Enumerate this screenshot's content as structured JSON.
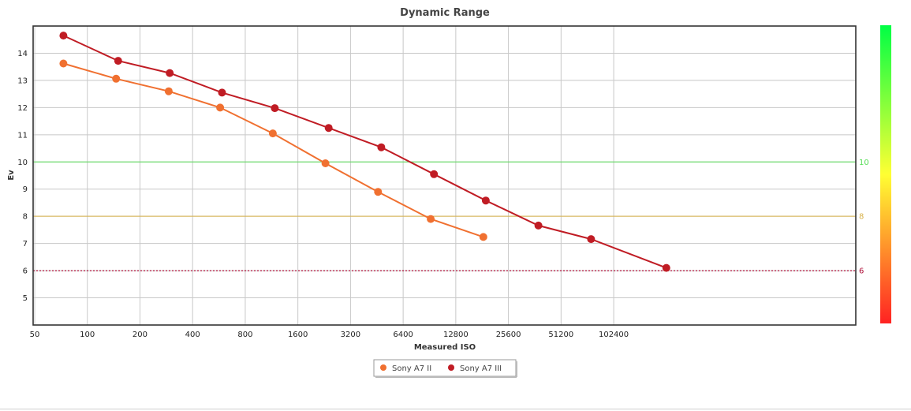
{
  "chart_data": {
    "type": "line",
    "title": "Dynamic Range",
    "xlabel": "Measured ISO",
    "ylabel": "Ev",
    "x_scale": "log2",
    "x_ticks": [
      {
        "value": 50,
        "label": "50"
      },
      {
        "value": 100,
        "label": "100"
      },
      {
        "value": 200,
        "label": "200"
      },
      {
        "value": 400,
        "label": "400"
      },
      {
        "value": 800,
        "label": "800"
      },
      {
        "value": 1600,
        "label": "1600"
      },
      {
        "value": 3200,
        "label": "3200"
      },
      {
        "value": 6400,
        "label": "6400"
      },
      {
        "value": 12800,
        "label": "12800"
      },
      {
        "value": 25600,
        "label": "25600"
      },
      {
        "value": 51200,
        "label": "51200"
      },
      {
        "value": 102400,
        "label": "102400"
      }
    ],
    "xlim": [
      50,
      1638400
    ],
    "y_ticks": [
      5,
      6,
      7,
      8,
      9,
      10,
      11,
      12,
      13,
      14
    ],
    "ylim": [
      4,
      15
    ],
    "grid": true,
    "legend_position": "bottom-center",
    "reference_lines": [
      {
        "value": 10,
        "label": "10",
        "color": "#55dd55",
        "style": "solid"
      },
      {
        "value": 8,
        "label": "8",
        "color": "#d8b24a",
        "style": "solid"
      },
      {
        "value": 6,
        "label": "6",
        "color": "#b0103a",
        "style": "dotted"
      }
    ],
    "colorbar": {
      "position": "right",
      "gradient": [
        "#00ff44",
        "#ffff33",
        "#ff2222"
      ]
    },
    "series": [
      {
        "name": "Sony A7 II",
        "color": "#f07030",
        "points": [
          {
            "x": 73,
            "y": 13.62
          },
          {
            "x": 146,
            "y": 13.06
          },
          {
            "x": 292,
            "y": 12.6
          },
          {
            "x": 575,
            "y": 12.0
          },
          {
            "x": 1150,
            "y": 11.05
          },
          {
            "x": 2300,
            "y": 9.95
          },
          {
            "x": 4600,
            "y": 8.9
          },
          {
            "x": 9200,
            "y": 7.9
          },
          {
            "x": 18400,
            "y": 7.24
          }
        ]
      },
      {
        "name": "Sony A7 III",
        "color": "#c01c24",
        "points": [
          {
            "x": 73,
            "y": 14.65
          },
          {
            "x": 150,
            "y": 13.72
          },
          {
            "x": 296,
            "y": 13.27
          },
          {
            "x": 589,
            "y": 12.55
          },
          {
            "x": 1180,
            "y": 11.98
          },
          {
            "x": 2400,
            "y": 11.25
          },
          {
            "x": 4800,
            "y": 10.54
          },
          {
            "x": 9600,
            "y": 9.55
          },
          {
            "x": 19000,
            "y": 8.58
          },
          {
            "x": 38000,
            "y": 7.66
          },
          {
            "x": 76000,
            "y": 7.16
          },
          {
            "x": 204800,
            "y": 6.1
          }
        ]
      }
    ]
  }
}
